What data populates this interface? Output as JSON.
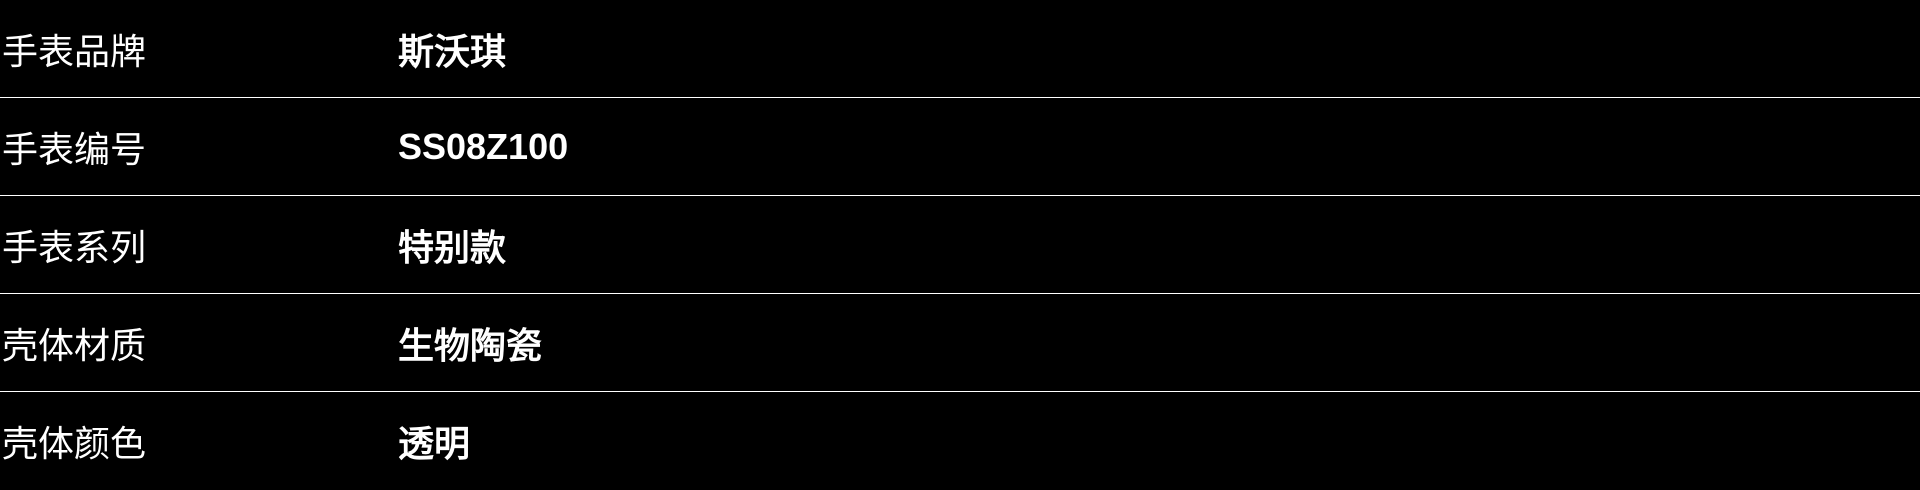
{
  "page": {
    "background_color": "#000000",
    "text_color": "#ffffff",
    "divider_color": "#ffffff"
  },
  "spec_table": {
    "rows": [
      {
        "label": "手表品牌",
        "value": "斯沃琪"
      },
      {
        "label": "手表编号",
        "value": "SS08Z100"
      },
      {
        "label": "手表系列",
        "value": "特别款"
      },
      {
        "label": "壳体材质",
        "value": "生物陶瓷"
      },
      {
        "label": "壳体颜色",
        "value": "透明"
      }
    ]
  }
}
